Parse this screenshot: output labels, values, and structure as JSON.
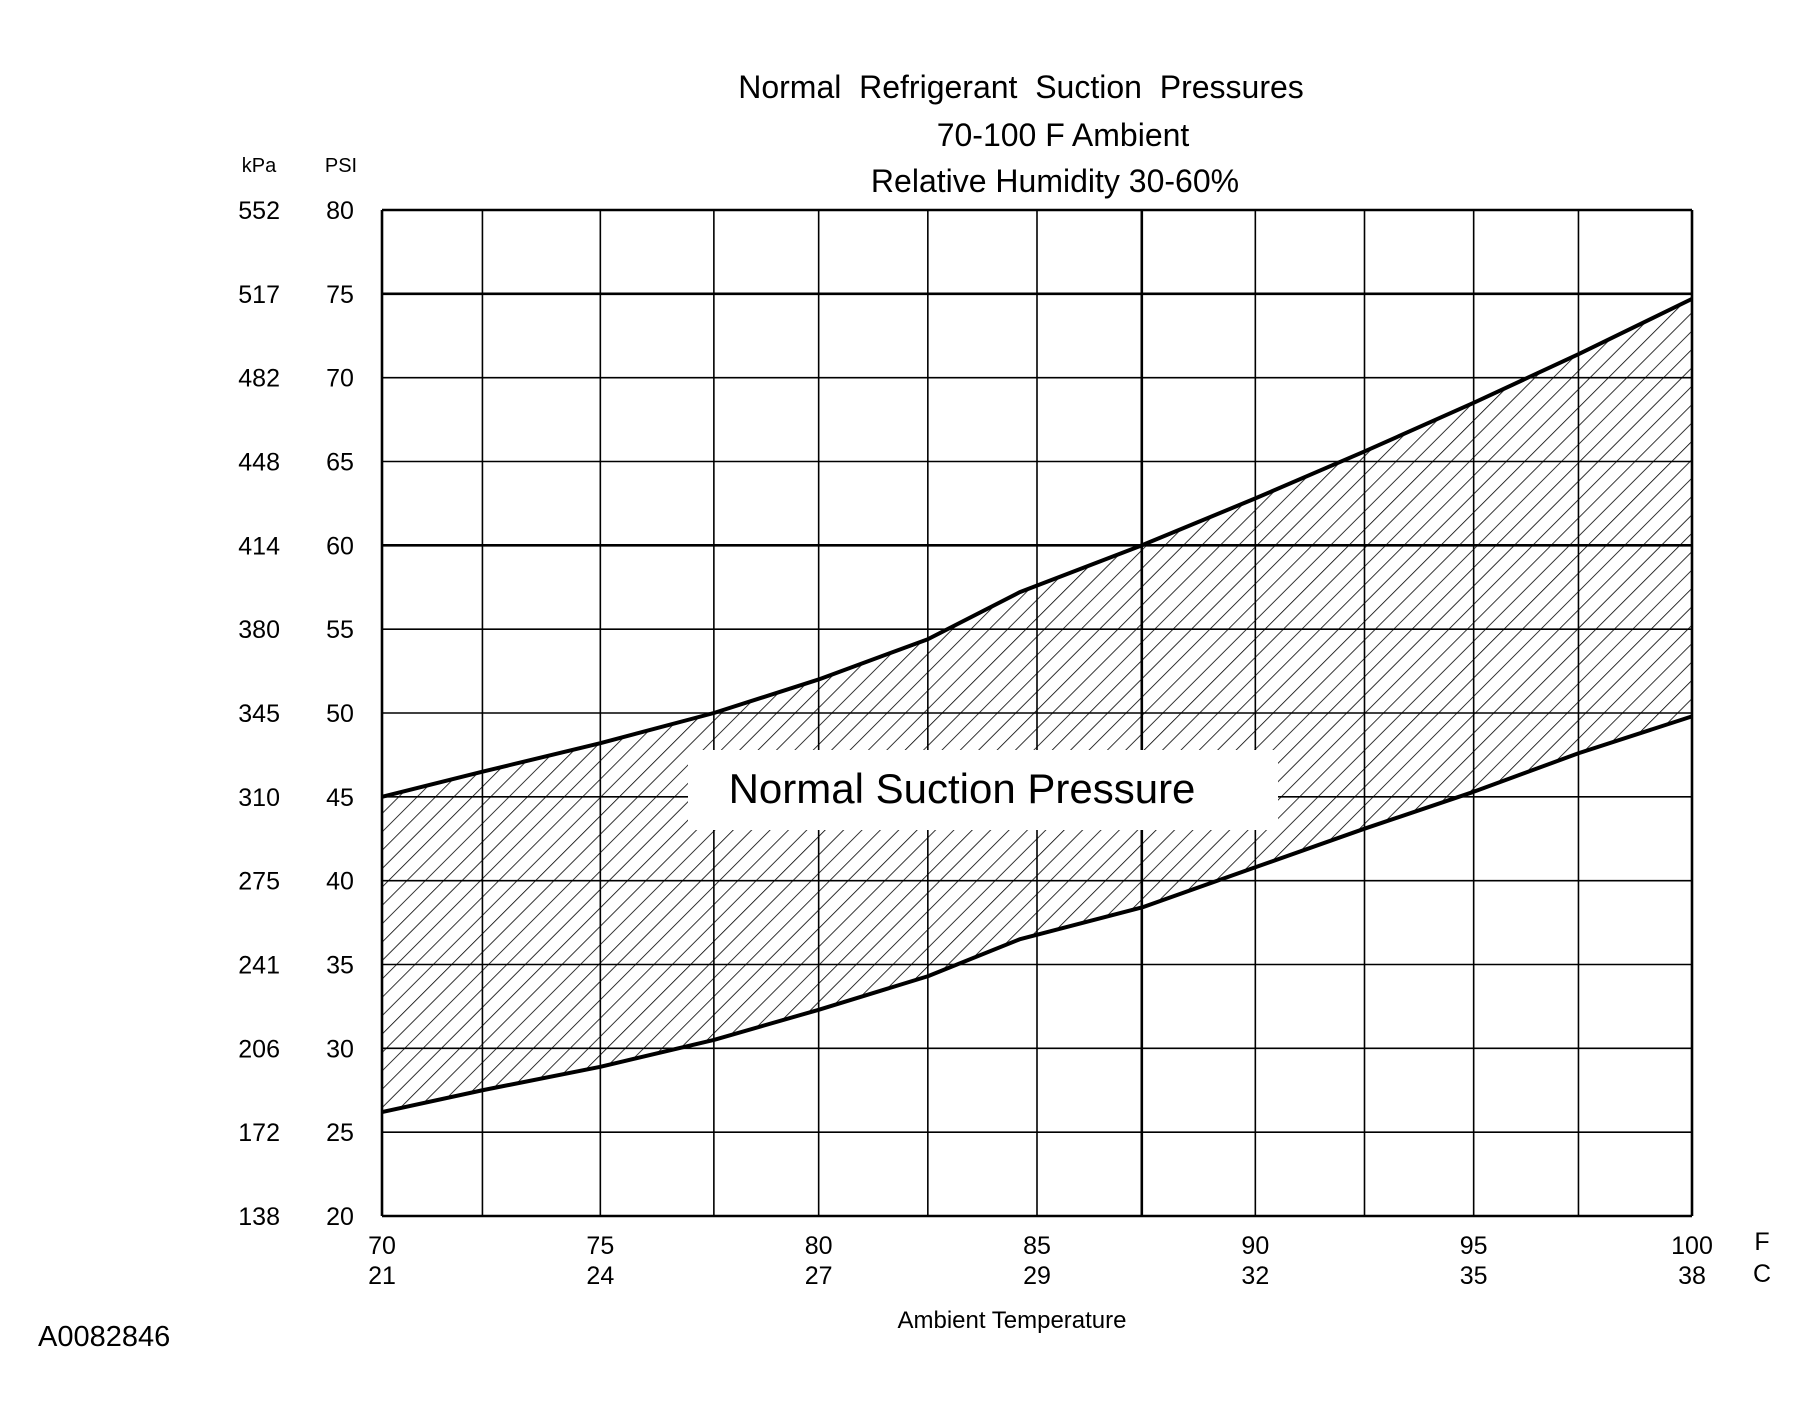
{
  "chart_data": {
    "type": "area",
    "title": "Normal  Refrigerant  Suction  Pressures",
    "subtitle_lines": [
      "70-100 F Ambient",
      "Relative Humidity 30-60%"
    ],
    "xlabel": "Ambient Temperature",
    "x_unit_primary": "F",
    "x_unit_secondary": "C",
    "y_unit_left": "kPa",
    "y_unit_right": "PSI",
    "band_label": "Normal Suction Pressure",
    "figure_id": "A0082846",
    "xlim": [
      70,
      100
    ],
    "ylim": [
      20,
      80
    ],
    "grid": true,
    "x_ticks": [
      {
        "f": "70",
        "c": "21"
      },
      {
        "f": "75",
        "c": "24"
      },
      {
        "f": "80",
        "c": "27"
      },
      {
        "f": "85",
        "c": "29"
      },
      {
        "f": "90",
        "c": "32"
      },
      {
        "f": "95",
        "c": "35"
      },
      {
        "f": "100",
        "c": "38"
      }
    ],
    "x_gridlines": [
      70,
      72.3,
      75,
      77.6,
      80,
      82.5,
      85,
      87.4,
      90,
      92.5,
      95,
      97.4,
      100
    ],
    "y_ticks": [
      {
        "psi": "80",
        "kpa": "552"
      },
      {
        "psi": "75",
        "kpa": "517"
      },
      {
        "psi": "70",
        "kpa": "482"
      },
      {
        "psi": "65",
        "kpa": "448"
      },
      {
        "psi": "60",
        "kpa": "414"
      },
      {
        "psi": "55",
        "kpa": "380"
      },
      {
        "psi": "50",
        "kpa": "345"
      },
      {
        "psi": "45",
        "kpa": "310"
      },
      {
        "psi": "40",
        "kpa": "275"
      },
      {
        "psi": "35",
        "kpa": "241"
      },
      {
        "psi": "30",
        "kpa": "206"
      },
      {
        "psi": "25",
        "kpa": "172"
      },
      {
        "psi": "20",
        "kpa": "138"
      }
    ],
    "series": [
      {
        "x": [
          70,
          72.3,
          75,
          77.6,
          80,
          82.5,
          84.6,
          87.4,
          90,
          92.5,
          95,
          97.4,
          100
        ],
        "values": [
          45,
          46.5,
          48.2,
          50,
          52,
          54.4,
          57.2,
          60,
          62.8,
          65.6,
          68.5,
          71.4,
          74.7
        ]
      },
      {
        "x": [
          70,
          72.3,
          75,
          77.6,
          80,
          82.5,
          84.6,
          87.4,
          90,
          92.5,
          95,
          97.4,
          100
        ],
        "values": [
          26.2,
          27.5,
          28.9,
          30.5,
          32.3,
          34.3,
          36.5,
          38.4,
          40.8,
          43.1,
          45.3,
          47.6,
          49.8
        ]
      }
    ]
  }
}
